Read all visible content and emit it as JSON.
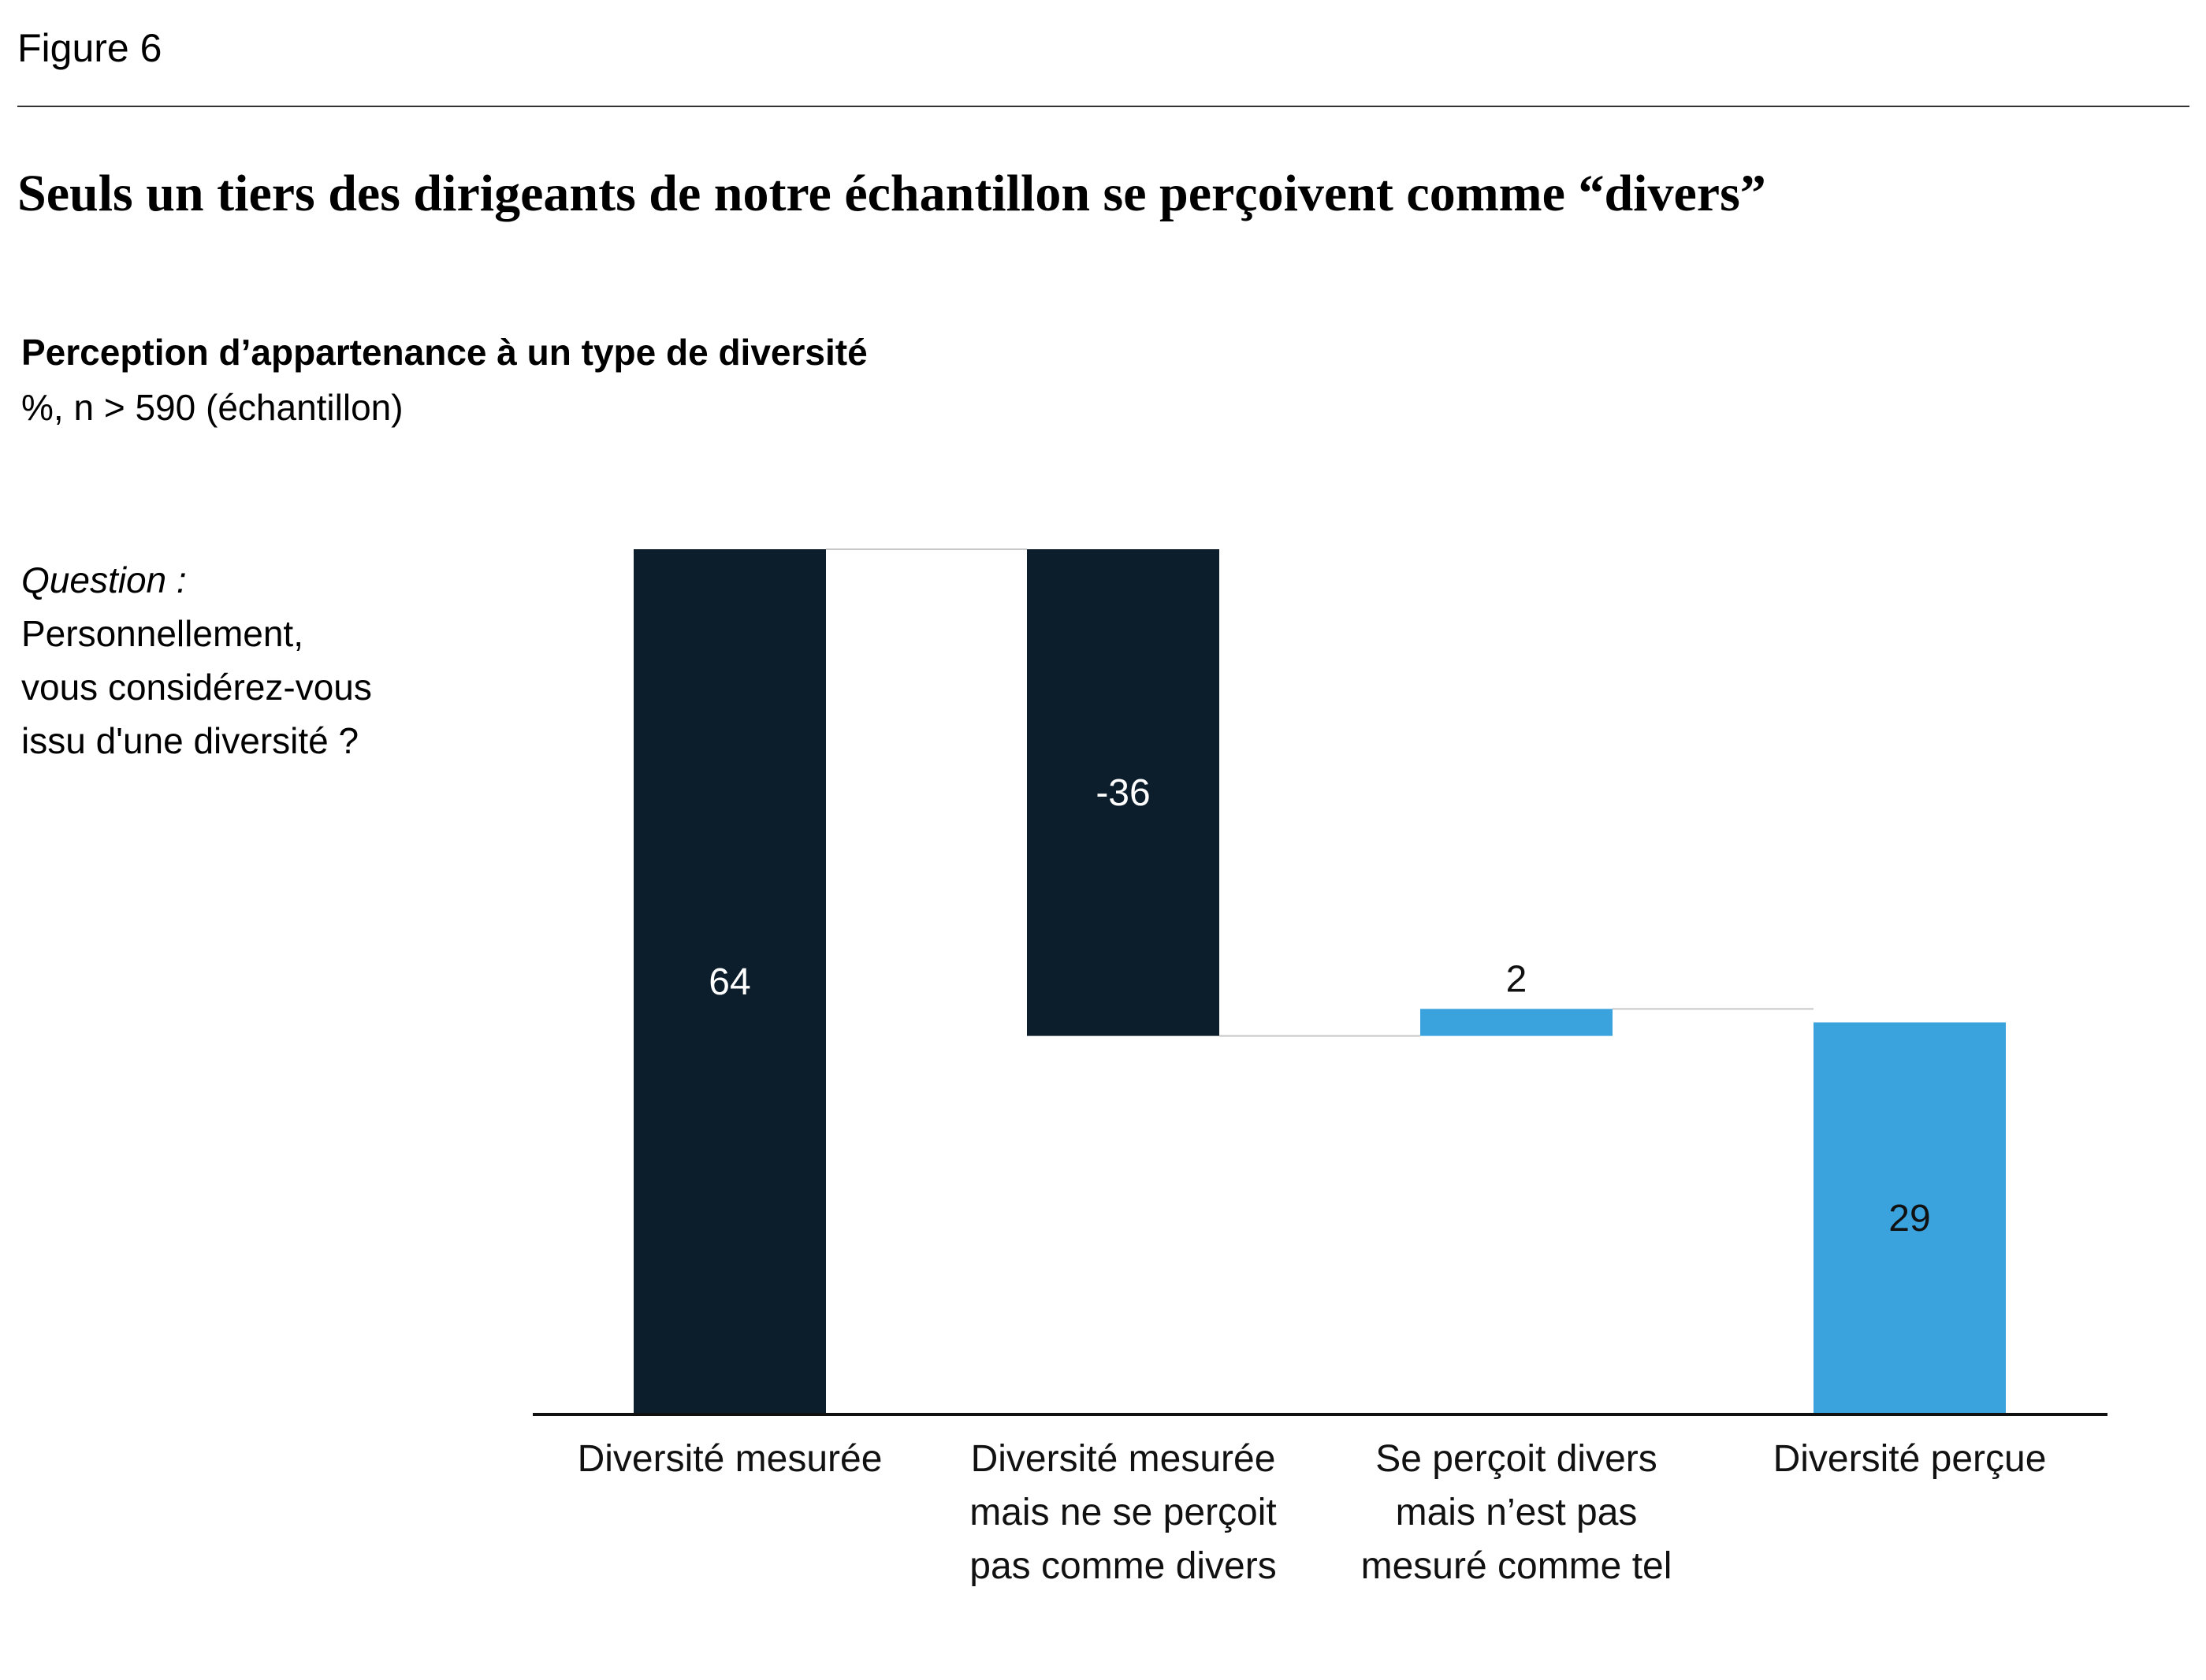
{
  "figure_label": "Figure 6",
  "title": "Seuls un tiers des dirigeants de notre échantillon se perçoivent comme “divers”",
  "subtitle": "Perception d’appartenance à un type de diversité",
  "units": "%, n > 590 (échantillon)",
  "question": {
    "heading": "Question :",
    "lines": [
      "Personnellement,",
      "vous considérez-vous",
      "issu d'une diversité ?"
    ]
  },
  "colors": {
    "dark": "#0c1d2c",
    "blue": "#3aa3dd",
    "connector": "#c8c8c8",
    "axis": "#111111"
  },
  "chart_data": {
    "type": "bar",
    "subtype": "waterfall",
    "categories": [
      [
        "Diversité mesurée"
      ],
      [
        "Diversité mesurée",
        "mais ne se perçoit",
        "pas comme divers"
      ],
      [
        "Se perçoit divers",
        "mais n’est pas",
        "mesuré comme tel"
      ],
      [
        "Diversité perçue"
      ]
    ],
    "values": [
      64,
      -36,
      2,
      29
    ],
    "value_labels": [
      "64",
      "-36",
      "2",
      "29"
    ],
    "bar_kind": [
      "total",
      "delta",
      "delta",
      "total"
    ],
    "bar_colors": [
      "dark",
      "dark",
      "blue",
      "blue"
    ],
    "label_position": [
      "inside",
      "inside",
      "above",
      "inside"
    ],
    "label_color": [
      "#ffffff",
      "#ffffff",
      "#111111",
      "#111111"
    ],
    "ylim": [
      0,
      64
    ],
    "grid": false,
    "legend": "none"
  }
}
